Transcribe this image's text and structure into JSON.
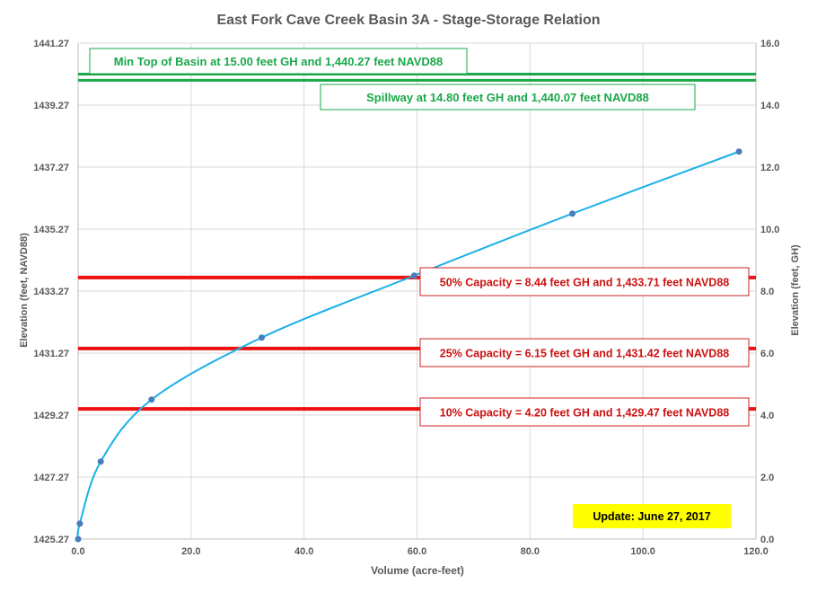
{
  "chart_data": {
    "type": "line",
    "title": "East Fork Cave Creek Basin 3A - Stage-Storage Relation",
    "xlabel": "Volume (acre-feet)",
    "ylabel_left": "Elevation  (feet, NAVD88)",
    "ylabel_right": "Elevation  (feet, GH)",
    "xlim": [
      0,
      120
    ],
    "x_ticks": [
      "0.0",
      "20.0",
      "40.0",
      "60.0",
      "80.0",
      "100.0",
      "120.0"
    ],
    "x_tick_values": [
      0,
      20,
      40,
      60,
      80,
      100,
      120
    ],
    "ylim_left": [
      1425.27,
      1441.27
    ],
    "y_left_ticks": [
      "1425.27",
      "1427.27",
      "1429.27",
      "1431.27",
      "1433.27",
      "1435.27",
      "1437.27",
      "1439.27",
      "1441.27"
    ],
    "y_left_tick_values": [
      1425.27,
      1427.27,
      1429.27,
      1431.27,
      1433.27,
      1435.27,
      1437.27,
      1439.27,
      1441.27
    ],
    "ylim_right": [
      0,
      16
    ],
    "y_right_ticks": [
      "0.0",
      "2.0",
      "4.0",
      "6.0",
      "8.0",
      "10.0",
      "12.0",
      "14.0",
      "16.0"
    ],
    "y_right_tick_values": [
      0,
      2,
      4,
      6,
      8,
      10,
      12,
      14,
      16
    ],
    "grid": true,
    "series": [
      {
        "color": "#1ab0e8",
        "marker_color": "#4a7ebb",
        "x": [
          0.0,
          0.3,
          4.0,
          13.0,
          32.5,
          59.5,
          87.5,
          117.0
        ],
        "y_gh": [
          0.0,
          0.5,
          2.5,
          4.5,
          6.5,
          8.5,
          10.5,
          12.5
        ]
      }
    ],
    "reference_lines": [
      {
        "y_gh": 15.0,
        "color": "#1aa84a",
        "label": "Min Top of Basin at 15.00 feet GH and 1,440.27 feet NAVD88",
        "box_border": "#1aa84a",
        "text_color": "#1aa84a"
      },
      {
        "y_gh": 14.8,
        "color": "#1aa84a",
        "label": "Spillway at 14.80  feet GH and 1,440.07  feet NAVD88",
        "box_border": "#1aa84a",
        "text_color": "#1aa84a"
      },
      {
        "y_gh": 8.44,
        "color": "#ee1111",
        "label": "50% Capacity = 8.44 feet GH and 1,433.71  feet NAVD88",
        "box_border": "#cc2222",
        "text_color": "#cc1111"
      },
      {
        "y_gh": 6.15,
        "color": "#ee1111",
        "label": "25% Capacity = 6.15 feet GH and 1,431.42  feet NAVD88",
        "box_border": "#cc2222",
        "text_color": "#cc1111"
      },
      {
        "y_gh": 4.2,
        "color": "#ee1111",
        "label": "10% Capacity = 4.20 feet GH and 1,429.47  feet NAVD88",
        "box_border": "#cc2222",
        "text_color": "#cc1111"
      }
    ],
    "update_note": {
      "label": "Update: June 27, 2017",
      "background": "#ffff00"
    }
  }
}
